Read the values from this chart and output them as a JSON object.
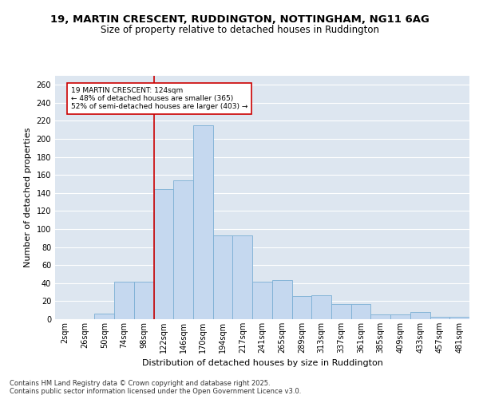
{
  "title1": "19, MARTIN CRESCENT, RUDDINGTON, NOTTINGHAM, NG11 6AG",
  "title2": "Size of property relative to detached houses in Ruddington",
  "xlabel": "Distribution of detached houses by size in Ruddington",
  "ylabel": "Number of detached properties",
  "categories": [
    "2sqm",
    "26sqm",
    "50sqm",
    "74sqm",
    "98sqm",
    "122sqm",
    "146sqm",
    "170sqm",
    "194sqm",
    "217sqm",
    "241sqm",
    "265sqm",
    "289sqm",
    "313sqm",
    "337sqm",
    "361sqm",
    "385sqm",
    "409sqm",
    "433sqm",
    "457sqm",
    "481sqm"
  ],
  "values": [
    0,
    0,
    6,
    42,
    42,
    144,
    154,
    215,
    93,
    93,
    42,
    43,
    26,
    27,
    17,
    17,
    5,
    5,
    8,
    3,
    3
  ],
  "bar_color": "#c5d8ef",
  "bar_edge_color": "#7bafd4",
  "vline_index": 7,
  "vline_color": "#cc0000",
  "annotation_text": "19 MARTIN CRESCENT: 124sqm\n← 48% of detached houses are smaller (365)\n52% of semi-detached houses are larger (403) →",
  "annotation_box_facecolor": "#ffffff",
  "annotation_box_edgecolor": "#cc0000",
  "ylim": [
    0,
    270
  ],
  "yticks": [
    0,
    20,
    40,
    60,
    80,
    100,
    120,
    140,
    160,
    180,
    200,
    220,
    240,
    260
  ],
  "background_color": "#dde6f0",
  "grid_color": "#ffffff",
  "fig_facecolor": "#ffffff",
  "footer": "Contains HM Land Registry data © Crown copyright and database right 2025.\nContains public sector information licensed under the Open Government Licence v3.0.",
  "title_fontsize": 9.5,
  "subtitle_fontsize": 8.5,
  "axis_label_fontsize": 8,
  "tick_fontsize": 7,
  "footer_fontsize": 6
}
